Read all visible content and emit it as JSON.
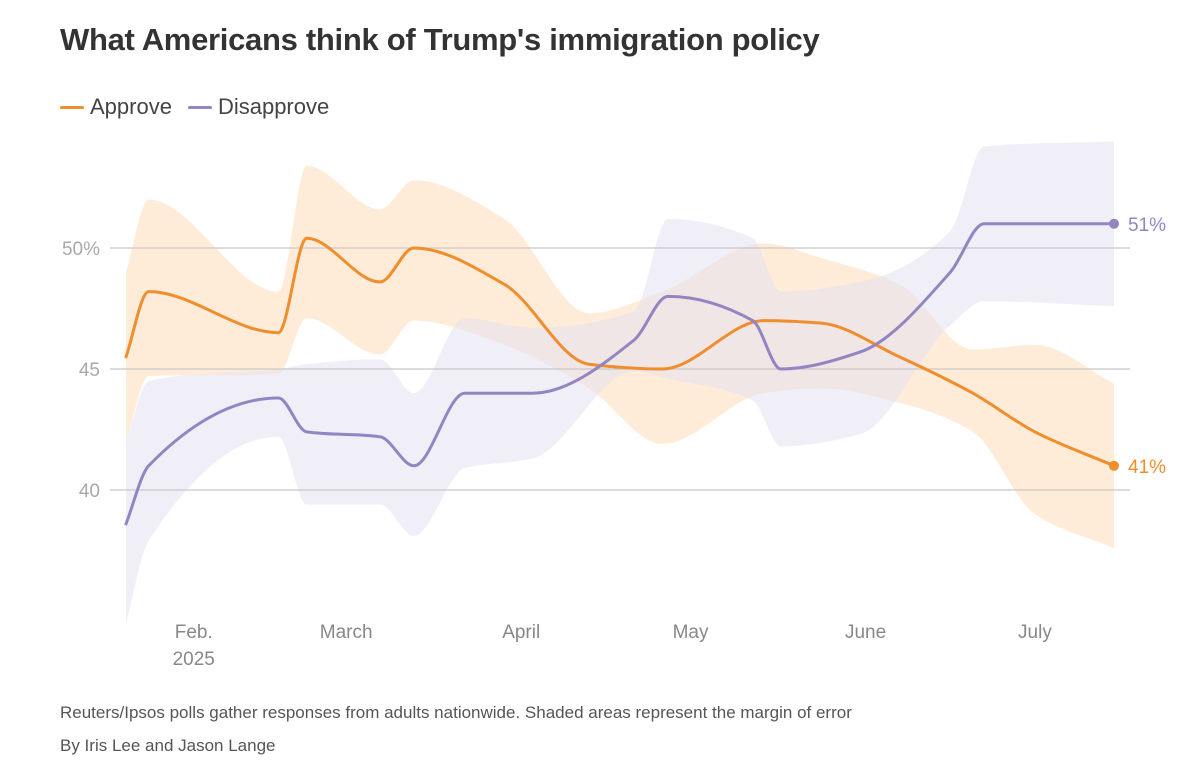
{
  "colors": {
    "approve": "#f08d2c",
    "disapprove": "#9385c2",
    "approve_band": "#fde5cb",
    "disapprove_band": "#e4e2f1",
    "grid": "#c8c8c8"
  },
  "chart_data": {
    "type": "line",
    "title": "What Americans think of Trump's immigration policy",
    "xlabel": "",
    "ylabel": "",
    "ylim": [
      34.5,
      55
    ],
    "xlim": [
      0,
      175
    ],
    "y_ticks": [
      {
        "value": 50,
        "label": "50%"
      },
      {
        "value": 45,
        "label": "45"
      },
      {
        "value": 40,
        "label": "40"
      }
    ],
    "x_ticks": [
      {
        "value": 12,
        "label": "Feb.",
        "sublabel": "2025"
      },
      {
        "value": 39,
        "label": "March"
      },
      {
        "value": 70,
        "label": "April"
      },
      {
        "value": 100,
        "label": "May"
      },
      {
        "value": 131,
        "label": "June"
      },
      {
        "value": 161,
        "label": "July"
      }
    ],
    "legend": [
      "Approve",
      "Disapprove"
    ],
    "legend_position": "top-left",
    "series": [
      {
        "name": "Approve",
        "color": "#f08d2c",
        "end_label": "41%",
        "x": [
          0,
          4,
          27,
          32,
          45,
          51,
          67,
          82,
          95,
          113,
          123,
          137,
          150,
          161,
          175
        ],
        "values": [
          45.5,
          48.2,
          46.5,
          50.4,
          48.6,
          50,
          48.5,
          45.2,
          45,
          47,
          46.9,
          45.5,
          44,
          42.4,
          41
        ],
        "upper": [
          49,
          52,
          48.2,
          53.4,
          51.6,
          52.8,
          51.2,
          47.3,
          48.2,
          50.2,
          49.6,
          48.5,
          45.8,
          46,
          44.4
        ],
        "lower": [
          42,
          44.7,
          44.8,
          47.1,
          45.6,
          47,
          46,
          44.2,
          41.9,
          44,
          44.2,
          43.6,
          42.4,
          39,
          37.6
        ]
      },
      {
        "name": "Disapprove",
        "color": "#9385c2",
        "end_label": "51%",
        "x": [
          0,
          4,
          27,
          32,
          45,
          51,
          60,
          72,
          90,
          96,
          111,
          116,
          130,
          146,
          152,
          175
        ],
        "values": [
          38.6,
          41,
          43.8,
          42.4,
          42.2,
          41,
          44,
          44,
          46.2,
          48,
          47,
          45,
          45.7,
          49,
          51,
          51
        ],
        "upper": [
          42,
          44.5,
          45,
          45.2,
          45.4,
          44,
          47.1,
          46.7,
          47.4,
          51.2,
          50.4,
          48.2,
          48.6,
          50.7,
          54.2,
          54.4
        ],
        "lower": [
          34.5,
          37.9,
          42.2,
          39.4,
          39.4,
          38.1,
          40.9,
          41.3,
          44.9,
          44.6,
          43.7,
          41.8,
          42.3,
          46.8,
          47.8,
          47.6
        ]
      }
    ]
  },
  "footer": {
    "note": "Reuters/Ipsos polls gather responses from adults nationwide. Shaded areas represent the margin of error",
    "byline": "By Iris Lee and Jason Lange"
  }
}
